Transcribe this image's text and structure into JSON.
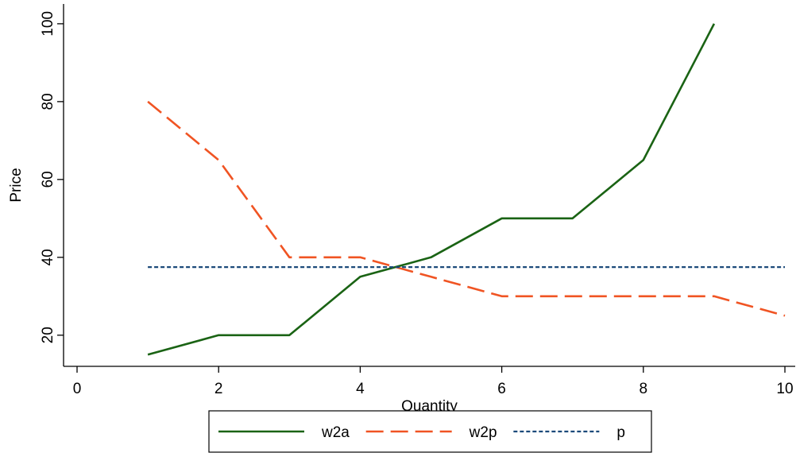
{
  "chart_data": {
    "type": "line",
    "xlabel": "Quantity",
    "ylabel": "Price",
    "xlim": [
      0,
      10
    ],
    "ylim": [
      12,
      101
    ],
    "xticks": [
      0,
      2,
      4,
      6,
      8,
      10
    ],
    "yticks": [
      20,
      40,
      60,
      80,
      100
    ],
    "grid": false,
    "legend_position": "bottom",
    "series": [
      {
        "name": "w2a",
        "color": "#1a6314",
        "style": "solid",
        "x": [
          1,
          2,
          3,
          4,
          5,
          6,
          7,
          8,
          9
        ],
        "y": [
          15,
          20,
          20,
          35,
          40,
          50,
          50,
          65,
          100
        ]
      },
      {
        "name": "w2p",
        "color": "#f05423",
        "style": "dashed",
        "x": [
          1,
          2,
          3,
          4,
          5,
          6,
          7,
          8,
          9,
          10
        ],
        "y": [
          80,
          65,
          40,
          40,
          35,
          30,
          30,
          30,
          30,
          25
        ]
      },
      {
        "name": "p",
        "color": "#1c4a7a",
        "style": "dotted",
        "x": [
          1,
          10
        ],
        "y": [
          37.5,
          37.5
        ]
      }
    ]
  }
}
